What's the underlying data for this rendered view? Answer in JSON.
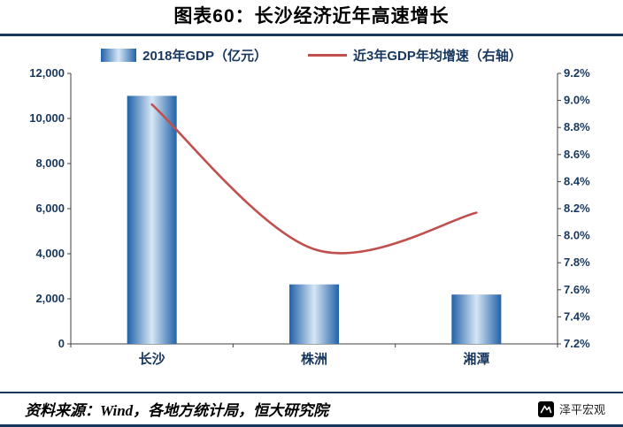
{
  "header": {
    "title": "图表60：长沙经济近年高速增长"
  },
  "legend": {
    "bar_label": "2018年GDP（亿元）",
    "line_label": "近3年GDP年均增速（右轴）"
  },
  "chart_data": {
    "type": "bar",
    "categories": [
      "长沙",
      "株洲",
      "湘潭"
    ],
    "series": [
      {
        "name": "2018年GDP（亿元）",
        "type": "bar",
        "axis": "left",
        "values": [
          11003,
          2640,
          2190
        ]
      },
      {
        "name": "近3年GDP年均增速（右轴）",
        "type": "line",
        "axis": "right",
        "values": [
          8.97,
          7.9,
          8.17
        ]
      }
    ],
    "left_axis": {
      "min": 0,
      "max": 12000,
      "step": 2000
    },
    "right_axis": {
      "min": 7.2,
      "max": 9.2,
      "step": 0.2,
      "suffix": "%"
    },
    "grid": false,
    "legend_position": "top",
    "colors": {
      "bar_edge": "#2162A8",
      "bar_center": "#D6E6F5",
      "line": "#C0504D",
      "axis_text": "#17375E",
      "axis_line": "#404040",
      "divider": "#16365C"
    }
  },
  "footer": {
    "source": "资料来源：Wind，各地方统计局，恒大研究院",
    "watermark": "泽平宏观"
  }
}
